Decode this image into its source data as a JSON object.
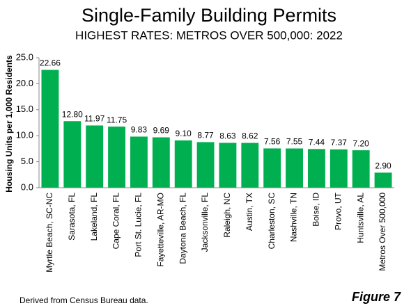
{
  "chart_data": {
    "type": "bar",
    "title": "Single-Family Building Permits",
    "subtitle": "HIGHEST RATES: METROS OVER 500,000: 2022",
    "y_label": "Housing Units per 1,000 Residents",
    "categories": [
      "Myrtle Beach, SC-NC",
      "Sarasota, FL",
      "Lakeland, FL",
      "Cape Coral, FL",
      "Port St. Lucie, FL",
      "Fayetteville, AR-MO",
      "Daytona Beach, FL",
      "Jacksonville, FL",
      "Raleigh, NC",
      "Austin, TX",
      "Charleston, SC",
      "Nashville, TN",
      "Boise, ID",
      "Provo, UT",
      "Huntsville, AL",
      "Metros Over 500,000"
    ],
    "values": [
      22.66,
      12.8,
      11.97,
      11.75,
      9.83,
      9.69,
      9.1,
      8.77,
      8.63,
      8.62,
      7.56,
      7.55,
      7.44,
      7.37,
      7.2,
      2.9
    ],
    "value_labels": [
      "22.66",
      "12.80",
      "11.97",
      "11.75",
      "9.83",
      "9.69",
      "9.10",
      "8.77",
      "8.63",
      "8.62",
      "7.56",
      "7.55",
      "7.44",
      "7.37",
      "7.20",
      "2.90"
    ],
    "color": "#00b050",
    "ylim": [
      0,
      25
    ],
    "yticks": [
      {
        "value": 0,
        "label": "0.0"
      },
      {
        "value": 5,
        "label": "5.0"
      },
      {
        "value": 10,
        "label": "10.0"
      },
      {
        "value": 15,
        "label": "15.0"
      },
      {
        "value": 20,
        "label": "20.0"
      },
      {
        "value": 25,
        "label": "25.0"
      }
    ],
    "grid": false,
    "footnote": "Derived from Census Bureau data.",
    "figure_label": "Figure 7"
  }
}
